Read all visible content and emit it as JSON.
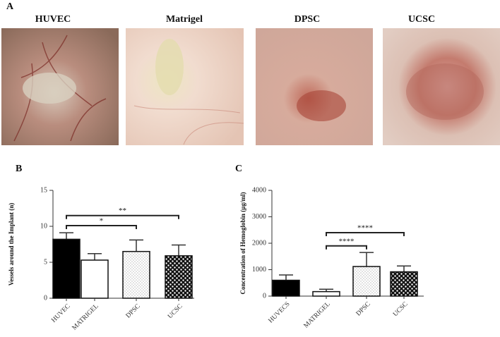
{
  "panel_a": {
    "label": "A",
    "images": [
      "HUVEC",
      "Matrigel",
      "DPSC",
      "UCSC"
    ]
  },
  "chart_data": [
    {
      "type": "bar",
      "panel_label": "B",
      "ylabel": "Vessels around the Implant (n)",
      "categories": [
        "HUVEC",
        "MATRIGEL",
        "DPSC",
        "UCSC"
      ],
      "values": [
        8.2,
        5.3,
        6.5,
        5.9
      ],
      "errors": [
        0.9,
        0.9,
        1.6,
        1.5
      ],
      "fills": [
        "solid",
        "white",
        "dots",
        "checker"
      ],
      "ylim": [
        0,
        15
      ],
      "yticks": [
        0,
        5,
        10,
        15
      ],
      "annotations": [
        {
          "text": "**",
          "from": "HUVEC",
          "to": "UCSC",
          "y": 11.5
        },
        {
          "text": "*",
          "from": "HUVEC",
          "to": "DPSC",
          "y": 10.1
        }
      ]
    },
    {
      "type": "bar",
      "panel_label": "C",
      "ylabel": "Concentration of Hemoglobin (µg/ml)",
      "categories": [
        "HUVECS",
        "MATRIGEL",
        "DPSC",
        "UCSC"
      ],
      "values": [
        600,
        170,
        1120,
        920
      ],
      "errors": [
        200,
        90,
        530,
        220
      ],
      "fills": [
        "solid",
        "white",
        "dots",
        "checker"
      ],
      "ylim": [
        0,
        4000
      ],
      "yticks": [
        0,
        1000,
        2000,
        3000,
        4000
      ],
      "annotations": [
        {
          "text": "****",
          "from": "MATRIGEL",
          "to": "UCSC",
          "y": 2400
        },
        {
          "text": "****",
          "from": "MATRIGEL",
          "to": "DPSC",
          "y": 1900
        }
      ]
    }
  ]
}
